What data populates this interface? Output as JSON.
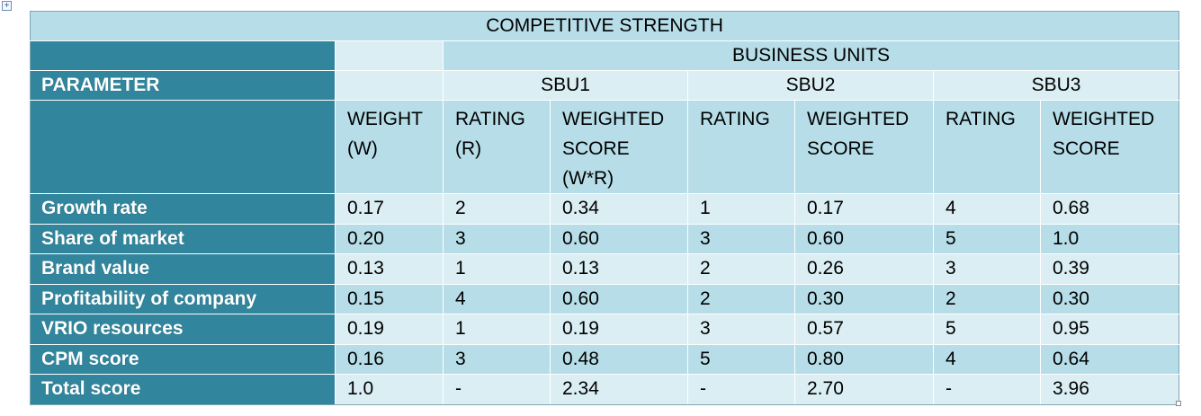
{
  "table": {
    "title": "COMPETITIVE STRENGTH",
    "business_units_label": "BUSINESS UNITS",
    "parameter_label": "PARAMETER",
    "sbu_labels": [
      "SBU1",
      "SBU2",
      "SBU3"
    ],
    "weight_header": [
      "WEIGHT",
      "(W)"
    ],
    "rating_header_sbu1": [
      "RATING",
      "(R)"
    ],
    "weighted_header_sbu1": [
      "WEIGHTED",
      "SCORE",
      "(W*R)"
    ],
    "rating_header": "RATING",
    "weighted_header": [
      "WEIGHTED",
      "SCORE"
    ],
    "rows": [
      {
        "parameter": "Growth rate",
        "weight": "0.17",
        "r1": "2",
        "s1": "0.34",
        "r2": "1",
        "s2": "0.17",
        "r3": "4",
        "s3": "0.68"
      },
      {
        "parameter": "Share of market",
        "weight": "0.20",
        "r1": "3",
        "s1": "0.60",
        "r2": "3",
        "s2": "0.60",
        "r3": "5",
        "s3": "1.0"
      },
      {
        "parameter": "Brand value",
        "weight": "0.13",
        "r1": "1",
        "s1": "0.13",
        "r2": "2",
        "s2": "0.26",
        "r3": "3",
        "s3": "0.39"
      },
      {
        "parameter": "Profitability of company",
        "weight": "0.15",
        "r1": "4",
        "s1": "0.60",
        "r2": "2",
        "s2": "0.30",
        "r3": "2",
        "s3": "0.30"
      },
      {
        "parameter": "VRIO resources",
        "weight": "0.19",
        "r1": "1",
        "s1": "0.19",
        "r2": "3",
        "s2": "0.57",
        "r3": "5",
        "s3": "0.95"
      },
      {
        "parameter": "CPM score",
        "weight": "0.16",
        "r1": "3",
        "s1": "0.48",
        "r2": "5",
        "s2": "0.80",
        "r3": "4",
        "s3": "0.64"
      },
      {
        "parameter": "Total score",
        "weight": "1.0",
        "r1": "-",
        "s1": "2.34",
        "r2": "-",
        "s2": "2.70",
        "r3": "-",
        "s3": "3.96"
      }
    ]
  }
}
